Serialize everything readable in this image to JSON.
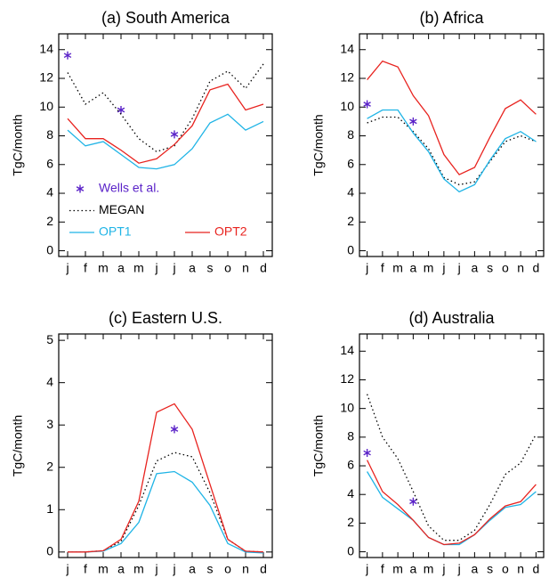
{
  "chart_data": [
    {
      "type": "line",
      "title": "(a) South America",
      "ylabel": "TgC/month",
      "categories": [
        "j",
        "f",
        "m",
        "a",
        "m",
        "j",
        "j",
        "a",
        "s",
        "o",
        "n",
        "d"
      ],
      "ylim": [
        -0.4,
        15.1
      ],
      "yticks": [
        0,
        2,
        4,
        6,
        8,
        10,
        12,
        14
      ],
      "legend": "lower left",
      "series": [
        {
          "name": "Wells et al.",
          "color": "#5a22c8",
          "style": "marker",
          "values": [
            13.6,
            null,
            null,
            9.8,
            null,
            null,
            8.1,
            null,
            null,
            null,
            null,
            null
          ]
        },
        {
          "name": "MEGAN",
          "color": "#000000",
          "style": "dotted",
          "values": [
            12.4,
            10.2,
            11.0,
            9.5,
            7.8,
            6.9,
            7.3,
            9.2,
            11.8,
            12.5,
            11.3,
            13.0
          ]
        },
        {
          "name": "OPT1",
          "color": "#1fb4e6",
          "style": "solid",
          "values": [
            8.4,
            7.3,
            7.6,
            6.7,
            5.8,
            5.7,
            6.0,
            7.1,
            8.9,
            9.5,
            8.4,
            9.0
          ]
        },
        {
          "name": "OPT2",
          "color": "#e8231f",
          "style": "solid",
          "values": [
            9.2,
            7.8,
            7.8,
            7.0,
            6.1,
            6.4,
            7.4,
            8.7,
            11.2,
            11.6,
            9.8,
            10.2
          ]
        }
      ]
    },
    {
      "type": "line",
      "title": "(b) Africa",
      "ylabel": "TgC/month",
      "categories": [
        "j",
        "f",
        "m",
        "a",
        "m",
        "j",
        "j",
        "a",
        "s",
        "o",
        "n",
        "d"
      ],
      "ylim": [
        -0.4,
        15.1
      ],
      "yticks": [
        0,
        2,
        4,
        6,
        8,
        10,
        12,
        14
      ],
      "series": [
        {
          "color": "#5a22c8",
          "style": "marker",
          "values": [
            10.2,
            null,
            null,
            9.0,
            null,
            null,
            null,
            null,
            null,
            null,
            null,
            null
          ]
        },
        {
          "color": "#000000",
          "style": "dotted",
          "values": [
            8.9,
            9.3,
            9.3,
            8.3,
            7.1,
            5.1,
            4.6,
            4.8,
            6.2,
            7.6,
            8.0,
            7.6
          ]
        },
        {
          "color": "#1fb4e6",
          "style": "solid",
          "values": [
            9.2,
            9.8,
            9.8,
            8.2,
            6.9,
            5.0,
            4.1,
            4.6,
            6.3,
            7.8,
            8.3,
            7.6
          ]
        },
        {
          "color": "#e8231f",
          "style": "solid",
          "values": [
            11.9,
            13.2,
            12.8,
            10.8,
            9.4,
            6.7,
            5.3,
            5.8,
            7.9,
            9.9,
            10.5,
            9.5
          ]
        }
      ]
    },
    {
      "type": "line",
      "title": "(c) Eastern U.S.",
      "ylabel": "TgC/month",
      "categories": [
        "j",
        "f",
        "m",
        "a",
        "m",
        "j",
        "j",
        "a",
        "s",
        "o",
        "n",
        "d"
      ],
      "ylim": [
        -0.13,
        5.15
      ],
      "yticks": [
        0,
        1,
        2,
        3,
        4,
        5
      ],
      "series": [
        {
          "color": "#5a22c8",
          "style": "marker",
          "values": [
            null,
            null,
            null,
            null,
            null,
            null,
            2.9,
            null,
            null,
            null,
            null,
            null
          ]
        },
        {
          "color": "#000000",
          "style": "dotted",
          "values": [
            0,
            0,
            0.03,
            0.25,
            1.1,
            2.15,
            2.35,
            2.25,
            1.4,
            0.3,
            0.02,
            0
          ]
        },
        {
          "color": "#1fb4e6",
          "style": "solid",
          "values": [
            0,
            0,
            0.02,
            0.2,
            0.7,
            1.85,
            1.9,
            1.65,
            1.1,
            0.2,
            0,
            -0.02
          ]
        },
        {
          "color": "#e8231f",
          "style": "solid",
          "values": [
            0,
            0,
            0.03,
            0.3,
            1.2,
            3.3,
            3.5,
            2.9,
            1.6,
            0.3,
            0.02,
            0
          ]
        }
      ]
    },
    {
      "type": "line",
      "title": "(d) Australia",
      "ylabel": "TgC/month",
      "categories": [
        "j",
        "f",
        "m",
        "a",
        "m",
        "j",
        "j",
        "a",
        "s",
        "o",
        "n",
        "d"
      ],
      "ylim": [
        -0.4,
        15.2
      ],
      "yticks": [
        0,
        2,
        4,
        6,
        8,
        10,
        12,
        14
      ],
      "series": [
        {
          "color": "#5a22c8",
          "style": "marker",
          "values": [
            6.9,
            null,
            null,
            3.5,
            null,
            null,
            null,
            null,
            null,
            null,
            null,
            null
          ]
        },
        {
          "color": "#000000",
          "style": "dotted",
          "values": [
            11.0,
            8.0,
            6.5,
            4.2,
            1.8,
            0.8,
            0.8,
            1.5,
            3.3,
            5.4,
            6.2,
            8.2
          ]
        },
        {
          "color": "#1fb4e6",
          "style": "solid",
          "values": [
            5.6,
            3.8,
            3.0,
            2.2,
            1.0,
            0.5,
            0.5,
            1.2,
            2.2,
            3.1,
            3.3,
            4.2
          ]
        },
        {
          "color": "#e8231f",
          "style": "solid",
          "values": [
            6.4,
            4.2,
            3.3,
            2.2,
            1.0,
            0.5,
            0.6,
            1.2,
            2.3,
            3.2,
            3.5,
            4.7
          ]
        }
      ]
    }
  ]
}
